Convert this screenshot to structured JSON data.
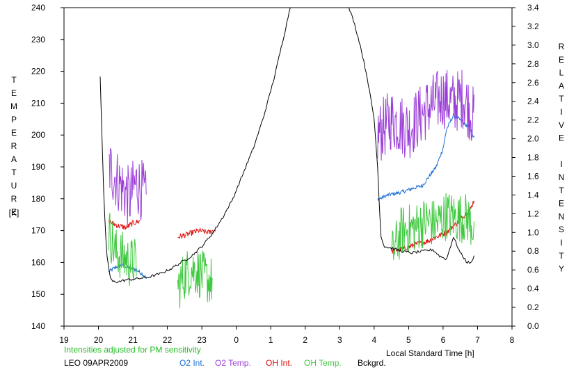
{
  "chart_data": {
    "type": "line",
    "left_axis_title": "TEMPERATURE",
    "left_axis_unit": "[K]",
    "right_axis_title": "RELATIVE INTENSITY",
    "x_axis_label": "Local Standard Time [h]",
    "note": "Intensities adjusted for PM sensitivity",
    "station_date": "LEO 09APR2009",
    "x_ticks": [
      {
        "value": 19,
        "label": "19"
      },
      {
        "value": 20,
        "label": "20"
      },
      {
        "value": 21,
        "label": "21"
      },
      {
        "value": 22,
        "label": "22"
      },
      {
        "value": 23,
        "label": "23"
      },
      {
        "value": 24,
        "label": "0"
      },
      {
        "value": 25,
        "label": "1"
      },
      {
        "value": 26,
        "label": "2"
      },
      {
        "value": 27,
        "label": "3"
      },
      {
        "value": 28,
        "label": "4"
      },
      {
        "value": 29,
        "label": "5"
      },
      {
        "value": 30,
        "label": "6"
      },
      {
        "value": 31,
        "label": "7"
      },
      {
        "value": 32,
        "label": "8"
      }
    ],
    "xlim": [
      19,
      32
    ],
    "ylim_left": [
      140,
      240
    ],
    "ylim_right": [
      0.0,
      3.4
    ],
    "y_left_ticks": [
      "140",
      "150",
      "160",
      "170",
      "180",
      "190",
      "200",
      "210",
      "220",
      "230",
      "240"
    ],
    "y_right_ticks": [
      "0.0",
      "0.2",
      "0.4",
      "0.6",
      "0.8",
      "1.0",
      "1.2",
      "1.4",
      "1.6",
      "1.8",
      "2.0",
      "2.2",
      "2.4",
      "2.6",
      "2.8",
      "3.0",
      "3.2",
      "3.4"
    ],
    "series": [
      {
        "name": "O2 Int.",
        "color": "#1f6fd6",
        "axis": "right",
        "noise": 0.02,
        "segments": [
          [
            [
              20.3,
              0.58
            ],
            [
              20.5,
              0.63
            ],
            [
              20.7,
              0.65
            ],
            [
              20.9,
              0.62
            ],
            [
              21.1,
              0.6
            ],
            [
              21.3,
              0.55
            ],
            [
              21.4,
              0.5
            ]
          ],
          [
            [
              28.1,
              1.35
            ],
            [
              28.4,
              1.4
            ],
            [
              28.8,
              1.43
            ],
            [
              29.2,
              1.48
            ],
            [
              29.4,
              1.5
            ],
            [
              29.8,
              1.7
            ],
            [
              30.0,
              1.9
            ],
            [
              30.1,
              2.1
            ],
            [
              30.3,
              2.25
            ],
            [
              30.5,
              2.2
            ],
            [
              30.8,
              2.1
            ],
            [
              30.9,
              2.0
            ]
          ]
        ]
      },
      {
        "name": "O2 Temp.",
        "color": "#9b3fd6",
        "axis": "left",
        "noise": 10,
        "segments": [
          [
            [
              20.3,
              190
            ],
            [
              20.6,
              185
            ],
            [
              20.9,
              180
            ],
            [
              21.1,
              185
            ],
            [
              21.3,
              182
            ],
            [
              21.4,
              178
            ]
          ],
          [
            [
              28.1,
              200
            ],
            [
              28.5,
              205
            ],
            [
              29.0,
              202
            ],
            [
              29.5,
              208
            ],
            [
              30.0,
              212
            ],
            [
              30.3,
              210
            ],
            [
              30.6,
              212
            ],
            [
              30.9,
              205
            ]
          ]
        ]
      },
      {
        "name": "OH Int.",
        "color": "#e01010",
        "axis": "right",
        "noise": 0.03,
        "segments": [
          [
            [
              20.3,
              1.12
            ],
            [
              20.5,
              1.08
            ],
            [
              20.8,
              1.05
            ],
            [
              21.0,
              1.1
            ],
            [
              21.2,
              1.12
            ]
          ],
          [
            [
              22.3,
              0.95
            ],
            [
              22.6,
              0.98
            ],
            [
              22.9,
              1.02
            ],
            [
              23.2,
              1.0
            ],
            [
              23.4,
              1.03
            ]
          ],
          [
            [
              28.5,
              0.8
            ],
            [
              28.8,
              0.82
            ],
            [
              29.2,
              0.87
            ],
            [
              29.5,
              0.9
            ],
            [
              29.8,
              0.95
            ],
            [
              30.1,
              1.0
            ],
            [
              30.4,
              1.1
            ],
            [
              30.6,
              1.18
            ],
            [
              30.8,
              1.25
            ],
            [
              30.9,
              1.35
            ]
          ]
        ]
      },
      {
        "name": "OH Temp.",
        "color": "#3ec83e",
        "axis": "left",
        "noise": 8,
        "segments": [
          [
            [
              20.3,
              170
            ],
            [
              20.5,
              163
            ],
            [
              20.7,
              162
            ],
            [
              20.9,
              160
            ],
            [
              21.1,
              160
            ]
          ],
          [
            [
              22.3,
              152
            ],
            [
              22.5,
              156
            ],
            [
              22.7,
              158
            ],
            [
              22.9,
              157
            ],
            [
              23.1,
              155
            ],
            [
              23.3,
              154
            ]
          ],
          [
            [
              28.5,
              162
            ],
            [
              28.8,
              170
            ],
            [
              29.2,
              171
            ],
            [
              29.5,
              173
            ],
            [
              29.8,
              172
            ],
            [
              30.1,
              175
            ],
            [
              30.4,
              174
            ],
            [
              30.7,
              174
            ],
            [
              30.9,
              171
            ]
          ]
        ]
      },
      {
        "name": "Bckgrd.",
        "color": "#000000",
        "axis": "left",
        "noise": 0.4,
        "segments": [
          [
            [
              20.05,
              218
            ],
            [
              20.1,
              200
            ],
            [
              20.15,
              182
            ],
            [
              20.2,
              170
            ],
            [
              20.25,
              162
            ],
            [
              20.3,
              158
            ],
            [
              20.35,
              155
            ],
            [
              20.4,
              154
            ],
            [
              20.6,
              154
            ],
            [
              20.8,
              154.5
            ],
            [
              21.0,
              154.7
            ],
            [
              21.2,
              155
            ],
            [
              21.5,
              155.5
            ],
            [
              21.8,
              156.5
            ],
            [
              22.1,
              158
            ],
            [
              22.4,
              160
            ],
            [
              22.7,
              162
            ],
            [
              23.0,
              165
            ],
            [
              23.3,
              169
            ],
            [
              23.6,
              174
            ],
            [
              23.9,
              180
            ],
            [
              24.2,
              188
            ],
            [
              24.5,
              196
            ],
            [
              24.8,
              206
            ],
            [
              25.1,
              218
            ],
            [
              25.4,
              232
            ],
            [
              25.6,
              242
            ]
          ],
          [
            [
              27.2,
              242
            ],
            [
              27.4,
              236
            ],
            [
              27.6,
              228
            ],
            [
              27.8,
              218
            ],
            [
              28.0,
              205
            ],
            [
              28.1,
              190
            ],
            [
              28.15,
              178
            ],
            [
              28.2,
              168
            ],
            [
              28.3,
              165
            ],
            [
              28.5,
              164.5
            ],
            [
              28.8,
              163.5
            ],
            [
              29.1,
              163
            ],
            [
              29.4,
              163.5
            ],
            [
              29.7,
              164
            ],
            [
              29.9,
              162
            ],
            [
              30.1,
              161
            ],
            [
              30.3,
              168
            ],
            [
              30.5,
              163
            ],
            [
              30.7,
              160
            ],
            [
              30.85,
              160
            ],
            [
              30.9,
              162.5
            ]
          ]
        ]
      }
    ]
  }
}
